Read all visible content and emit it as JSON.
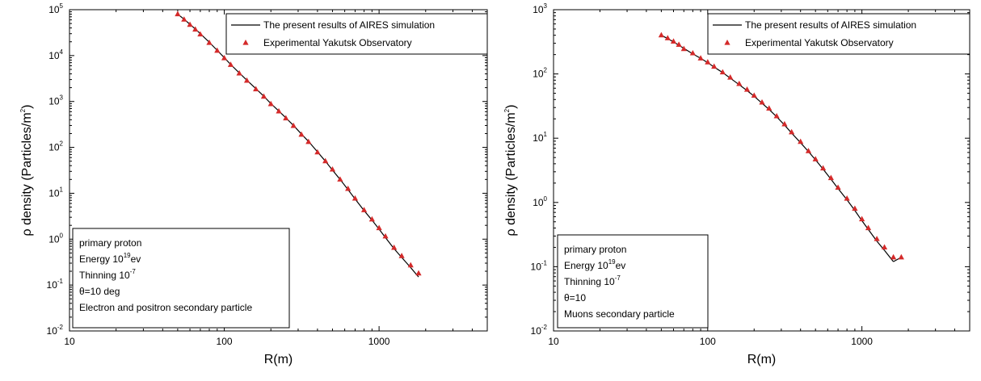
{
  "chart_data": [
    {
      "type": "line",
      "xscale": "log",
      "yscale": "log",
      "xlim": [
        10,
        5000
      ],
      "ylim": [
        0.01,
        100000
      ],
      "xlabel": "R(m)",
      "ylabel": "ρ density (Particles/m2)",
      "ylabel_parts": {
        "main": "ρ density (Particles/m",
        "sup": "2",
        "end": ")"
      },
      "xtick_labels": [
        "10",
        "100",
        "1000"
      ],
      "xtick_values": [
        10,
        100,
        1000
      ],
      "ytick_values": [
        0.01,
        0.1,
        1,
        10,
        100,
        1000,
        10000,
        100000
      ],
      "ytick_labels": [
        {
          "base": "10",
          "exp": "-2"
        },
        {
          "base": "10",
          "exp": "-1"
        },
        {
          "base": "10",
          "exp": "0"
        },
        {
          "base": "10",
          "exp": "1"
        },
        {
          "base": "10",
          "exp": "2"
        },
        {
          "base": "10",
          "exp": "3"
        },
        {
          "base": "10",
          "exp": "4"
        },
        {
          "base": "10",
          "exp": "5"
        }
      ],
      "legend": {
        "placement": "top-right",
        "line_label": "The present results of AIRES simulation",
        "marker_label": "Experimental Yakutsk Observatory"
      },
      "series": [
        {
          "name": "The present results of AIRES simulation",
          "kind": "line",
          "x": [
            50,
            55,
            60,
            65,
            70,
            80,
            90,
            100,
            110,
            125,
            140,
            160,
            180,
            200,
            225,
            250,
            280,
            315,
            350,
            400,
            450,
            500,
            560,
            630,
            700,
            800,
            900,
            1000,
            1100,
            1250,
            1400,
            1600,
            1800
          ],
          "y": [
            80000,
            62000,
            48000,
            38000,
            30000,
            19500,
            13000,
            9000,
            6400,
            4200,
            2900,
            1900,
            1300,
            900,
            620,
            440,
            300,
            195,
            135,
            80,
            50,
            32,
            20,
            12,
            7.5,
            4.2,
            2.6,
            1.65,
            1.08,
            0.62,
            0.4,
            0.24,
            0.15
          ]
        },
        {
          "name": "Experimental Yakutsk Observatory",
          "kind": "marker",
          "x": [
            50,
            55,
            60,
            65,
            70,
            80,
            90,
            100,
            110,
            125,
            140,
            160,
            180,
            200,
            225,
            250,
            280,
            315,
            350,
            400,
            450,
            500,
            560,
            630,
            700,
            800,
            900,
            1000,
            1100,
            1250,
            1400,
            1600,
            1800
          ],
          "y": [
            80000,
            61000,
            47000,
            37000,
            29000,
            19000,
            12800,
            8800,
            6300,
            4100,
            2850,
            1850,
            1280,
            880,
            610,
            430,
            295,
            190,
            132,
            78,
            50,
            33,
            20,
            12.5,
            7.7,
            4.3,
            2.7,
            1.75,
            1.15,
            0.65,
            0.43,
            0.27,
            0.18
          ]
        }
      ],
      "info_box": [
        {
          "text": "primary proton"
        },
        {
          "text": "Energy 10",
          "sup": "19",
          "after": "ev"
        },
        {
          "text": "Thinning 10",
          "sup": "-7",
          "after": ""
        },
        {
          "text": "θ=10 deg"
        },
        {
          "text": "Electron and positron secondary particle"
        }
      ],
      "colors": {
        "line": "#000000",
        "marker": "#d42a2a"
      }
    },
    {
      "type": "line",
      "xscale": "log",
      "yscale": "log",
      "xlim": [
        10,
        5000
      ],
      "ylim": [
        0.01,
        1000
      ],
      "xlabel": "R(m)",
      "ylabel": "ρ density (Particles/m2)",
      "ylabel_parts": {
        "main": "ρ density (Particles/m",
        "sup": "2",
        "end": ")"
      },
      "xtick_labels": [
        "10",
        "100",
        "1000"
      ],
      "xtick_values": [
        10,
        100,
        1000
      ],
      "ytick_values": [
        0.01,
        0.1,
        1,
        10,
        100,
        1000
      ],
      "ytick_labels": [
        {
          "base": "10",
          "exp": "-2"
        },
        {
          "base": "10",
          "exp": "-1"
        },
        {
          "base": "10",
          "exp": "0"
        },
        {
          "base": "10",
          "exp": "1"
        },
        {
          "base": "10",
          "exp": "2"
        },
        {
          "base": "10",
          "exp": "3"
        }
      ],
      "legend": {
        "placement": "top-right",
        "line_label": "The present results of AIRES simulation",
        "marker_label": "Experimental Yakutsk Observatory"
      },
      "series": [
        {
          "name": "The present results of AIRES simulation",
          "kind": "line",
          "x": [
            50,
            55,
            60,
            65,
            70,
            80,
            90,
            100,
            110,
            125,
            140,
            160,
            180,
            200,
            225,
            250,
            280,
            315,
            350,
            400,
            450,
            500,
            560,
            630,
            700,
            800,
            900,
            1000,
            1100,
            1250,
            1400,
            1600,
            1800
          ],
          "y": [
            400,
            355,
            315,
            280,
            250,
            205,
            175,
            150,
            128,
            105,
            86,
            68,
            55,
            45,
            35,
            28,
            21.5,
            16,
            12,
            8.5,
            6.2,
            4.6,
            3.3,
            2.3,
            1.65,
            1.1,
            0.75,
            0.52,
            0.38,
            0.25,
            0.18,
            0.12,
            0.14
          ]
        },
        {
          "name": "Experimental Yakutsk Observatory",
          "kind": "marker",
          "x": [
            50,
            55,
            60,
            65,
            70,
            80,
            90,
            100,
            110,
            125,
            140,
            160,
            180,
            200,
            225,
            250,
            280,
            315,
            350,
            400,
            450,
            500,
            560,
            630,
            700,
            800,
            900,
            1000,
            1100,
            1250,
            1400,
            1600,
            1800
          ],
          "y": [
            400,
            360,
            320,
            285,
            245,
            210,
            175,
            152,
            130,
            106,
            88,
            70,
            57,
            46,
            36,
            29,
            22,
            16.5,
            12.4,
            8.8,
            6.3,
            4.7,
            3.4,
            2.4,
            1.7,
            1.15,
            0.8,
            0.55,
            0.4,
            0.27,
            0.2,
            0.14,
            0.14
          ]
        }
      ],
      "info_box": [
        {
          "text": "primary proton"
        },
        {
          "text": "Energy 10",
          "sup": "19",
          "after": "ev"
        },
        {
          "text": "Thinning 10",
          "sup": "-7",
          "after": ""
        },
        {
          "text": "θ=10"
        },
        {
          "text": "Muons secondary particle"
        }
      ],
      "colors": {
        "line": "#000000",
        "marker": "#d42a2a"
      }
    }
  ]
}
